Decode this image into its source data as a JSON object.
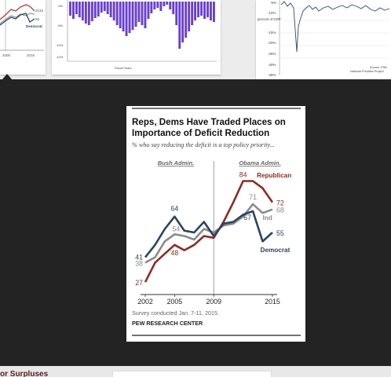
{
  "thumbnails": {
    "left": {
      "labels": [
        "2000",
        "2015",
        "Democrat",
        "72",
        "55"
      ]
    },
    "middle": {
      "y_ticks": [
        "0%",
        "-2%",
        "-4%",
        "-6%",
        "-8%",
        "-10%",
        "-12%"
      ],
      "footer": "Fiscal Years"
    },
    "right": {
      "y_ticks": [
        "-5%",
        "-10%",
        "-15%",
        "-20%",
        "-25%",
        "-30%",
        "-35%"
      ],
      "y_title": "percent of GDP",
      "source": "Source: FRB",
      "source2": "National Priorities Project"
    }
  },
  "bottom": {
    "partial_title": "or Surpluses"
  },
  "colors": {
    "republican": "#8f2a23",
    "democrat": "#2b4560",
    "independent": "#8b8b8b",
    "overlay": "#232323"
  },
  "chart_card": {
    "title_line1": "Reps, Dems Have Traded Places on",
    "title_line2": "Importance of Deficit Reduction",
    "subtitle": "% who say reducing the deficit is a top policy priority...",
    "era_left": "Bush Admin.",
    "era_right": "Obama Admin.",
    "note": "Survey conducted Jan. 7-11, 2015.",
    "source": "PEW RESEARCH CENTER"
  },
  "chart_data": {
    "type": "line",
    "x": [
      2002,
      2003,
      2004,
      2005,
      2006,
      2007,
      2008,
      2009,
      2010,
      2011,
      2012,
      2013,
      2014,
      2015
    ],
    "xticks": [
      2002,
      2005,
      2009,
      2015
    ],
    "ylim": [
      20,
      90
    ],
    "divider_x": 2009,
    "series": [
      {
        "name": "Republican",
        "color": "#8f2a23",
        "values": [
          27,
          38,
          43,
          48,
          45,
          48,
          53,
          52,
          61,
          72,
          84,
          84,
          80,
          72
        ]
      },
      {
        "name": "Ind",
        "color": "#8b8b8b",
        "values": [
          38,
          41,
          50,
          54,
          53,
          51,
          57,
          55,
          59,
          60,
          64,
          71,
          66,
          68
        ]
      },
      {
        "name": "Democrat",
        "color": "#2b4560",
        "values": [
          41,
          48,
          57,
          64,
          56,
          55,
          61,
          53,
          60,
          61,
          65,
          67,
          50,
          55
        ]
      }
    ],
    "point_labels": [
      {
        "text": "84",
        "x": 2012,
        "series": "Republican",
        "value": 84,
        "anchor": "middle",
        "dx": 0,
        "dy": -5
      },
      {
        "text": "72",
        "x": 2015,
        "series": "Republican",
        "value": 72,
        "anchor": "start",
        "dx": 5,
        "dy": 4
      },
      {
        "text": "71",
        "x": 2013,
        "series": "Ind",
        "value": 71,
        "anchor": "middle",
        "dx": 0,
        "dy": -6
      },
      {
        "text": "68",
        "x": 2015,
        "series": "Ind",
        "value": 68,
        "anchor": "start",
        "dx": 5,
        "dy": 4
      },
      {
        "text": "67",
        "x": 2013,
        "series": "Democrat",
        "value": 67,
        "anchor": "end",
        "dx": -2,
        "dy": 11
      },
      {
        "text": "55",
        "x": 2015,
        "series": "Democrat",
        "value": 55,
        "anchor": "start",
        "dx": 5,
        "dy": 4
      },
      {
        "text": "64",
        "x": 2005,
        "series": "Democrat",
        "value": 64,
        "anchor": "middle",
        "dx": 0,
        "dy": -7
      },
      {
        "text": "54",
        "x": 2005,
        "series": "Ind",
        "value": 54,
        "anchor": "middle",
        "dx": 2,
        "dy": -4
      },
      {
        "text": "48",
        "x": 2005,
        "series": "Republican",
        "value": 48,
        "anchor": "middle",
        "dx": 0,
        "dy": 13
      },
      {
        "text": "41",
        "x": 2002,
        "series": "Democrat",
        "value": 41,
        "anchor": "end",
        "dx": -3,
        "dy": 3
      },
      {
        "text": "38",
        "x": 2002,
        "series": "Ind",
        "value": 38,
        "anchor": "end",
        "dx": -3,
        "dy": 4
      },
      {
        "text": "27",
        "x": 2002,
        "series": "Republican",
        "value": 27,
        "anchor": "end",
        "dx": -3,
        "dy": 4
      }
    ],
    "series_labels": [
      {
        "text": "Republican",
        "series": "Republican",
        "x": 2013,
        "value": 86,
        "anchor": "start",
        "dx": 5,
        "dy": 0
      },
      {
        "text": "Ind",
        "series": "Ind",
        "x": 2014,
        "value": 62,
        "anchor": "start",
        "dx": 0,
        "dy": 0
      },
      {
        "text": "Democrat",
        "series": "Democrat",
        "x": 2014,
        "value": 44,
        "anchor": "start",
        "dx": -3,
        "dy": 0
      }
    ]
  }
}
